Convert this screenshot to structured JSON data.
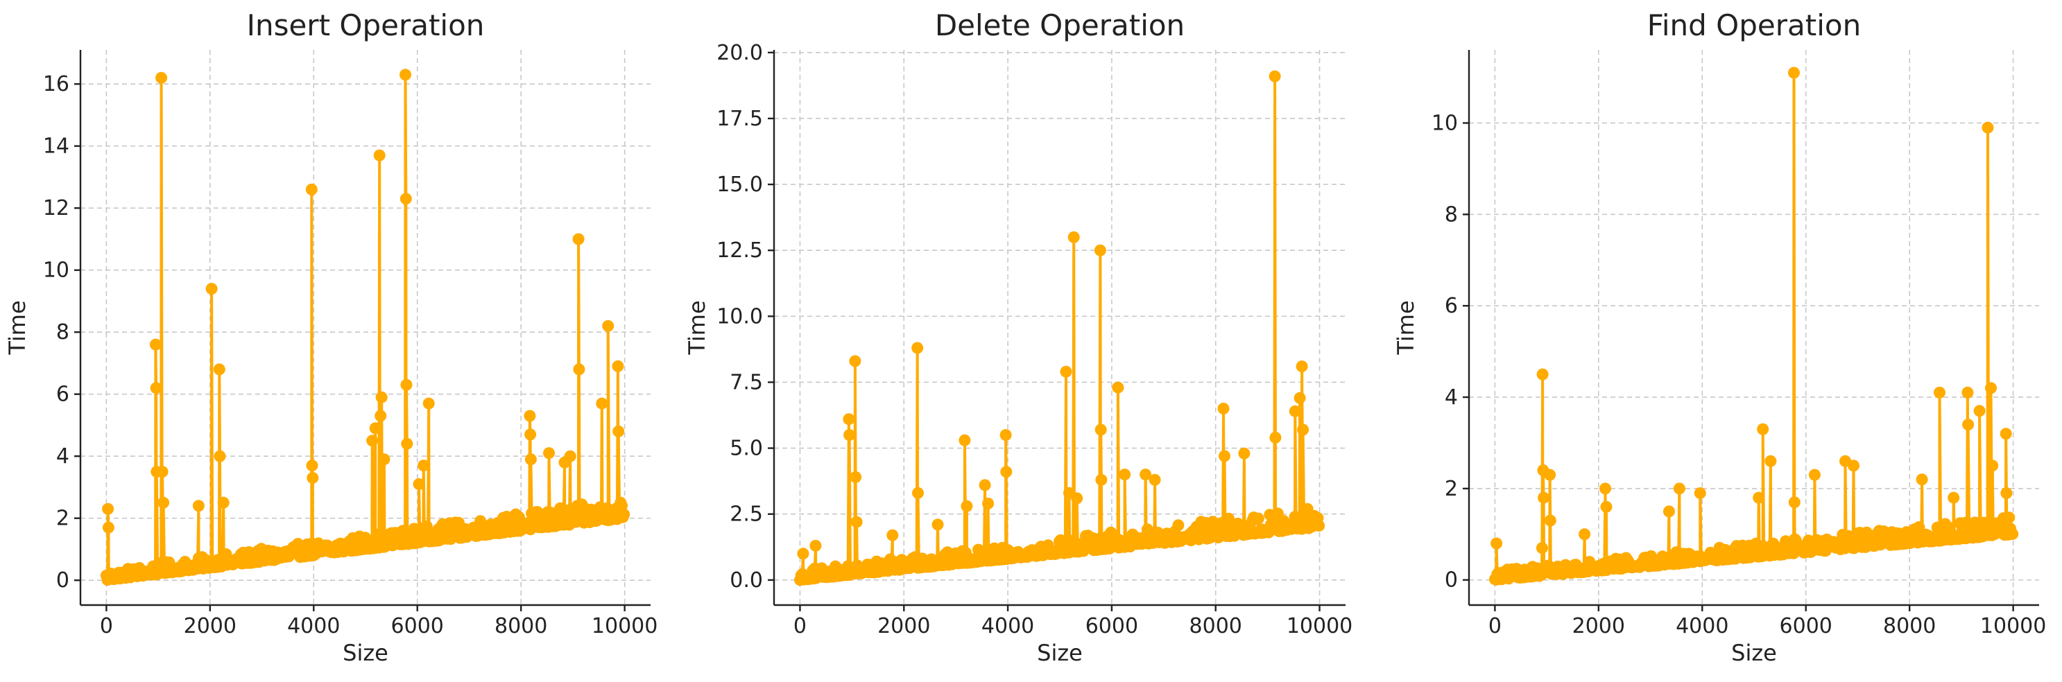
{
  "chart_data": [
    {
      "type": "line",
      "title": "Insert Operation",
      "xlabel": "Size",
      "ylabel": "Time",
      "xlim": [
        -500,
        10500
      ],
      "ylim": [
        -0.8,
        17.1
      ],
      "xticks": [
        0,
        2000,
        4000,
        6000,
        8000,
        10000
      ],
      "yticks": [
        0,
        2,
        4,
        6,
        8,
        10,
        12,
        14,
        16
      ],
      "grid": true,
      "color": "#ffab00",
      "baseline": {
        "x0": 0,
        "y0": 0.0,
        "x1": 10000,
        "y1": 2.0
      },
      "noise": 0.32,
      "spikes": [
        {
          "x": 30,
          "y": 2.3
        },
        {
          "x": 40,
          "y": 1.7
        },
        {
          "x": 950,
          "y": 7.6
        },
        {
          "x": 960,
          "y": 6.2
        },
        {
          "x": 970,
          "y": 3.5
        },
        {
          "x": 1060,
          "y": 16.2
        },
        {
          "x": 1080,
          "y": 3.5
        },
        {
          "x": 1100,
          "y": 2.5
        },
        {
          "x": 1780,
          "y": 2.4
        },
        {
          "x": 2030,
          "y": 9.4
        },
        {
          "x": 2180,
          "y": 6.8
        },
        {
          "x": 2190,
          "y": 4.0
        },
        {
          "x": 2260,
          "y": 2.5
        },
        {
          "x": 3960,
          "y": 12.6
        },
        {
          "x": 3970,
          "y": 3.7
        },
        {
          "x": 3980,
          "y": 3.3
        },
        {
          "x": 5130,
          "y": 4.5
        },
        {
          "x": 5190,
          "y": 4.9
        },
        {
          "x": 5270,
          "y": 13.7
        },
        {
          "x": 5290,
          "y": 5.3
        },
        {
          "x": 5310,
          "y": 5.9
        },
        {
          "x": 5360,
          "y": 3.9
        },
        {
          "x": 5770,
          "y": 16.3
        },
        {
          "x": 5780,
          "y": 12.3
        },
        {
          "x": 5790,
          "y": 6.3
        },
        {
          "x": 5800,
          "y": 4.4
        },
        {
          "x": 6030,
          "y": 3.1
        },
        {
          "x": 6120,
          "y": 3.7
        },
        {
          "x": 6220,
          "y": 5.7
        },
        {
          "x": 8170,
          "y": 5.3
        },
        {
          "x": 8180,
          "y": 4.7
        },
        {
          "x": 8190,
          "y": 3.9
        },
        {
          "x": 8540,
          "y": 4.1
        },
        {
          "x": 8840,
          "y": 3.8
        },
        {
          "x": 8950,
          "y": 4.0
        },
        {
          "x": 9110,
          "y": 11.0
        },
        {
          "x": 9120,
          "y": 6.8
        },
        {
          "x": 9560,
          "y": 5.7
        },
        {
          "x": 9680,
          "y": 8.2
        },
        {
          "x": 9870,
          "y": 6.9
        },
        {
          "x": 9880,
          "y": 4.8
        }
      ]
    },
    {
      "type": "line",
      "title": "Delete Operation",
      "xlabel": "Size",
      "ylabel": "Time",
      "xlim": [
        -500,
        10500
      ],
      "ylim": [
        -0.95,
        20.1
      ],
      "xticks": [
        0,
        2000,
        4000,
        6000,
        8000,
        10000
      ],
      "yticks": [
        0.0,
        2.5,
        5.0,
        7.5,
        10.0,
        12.5,
        15.0,
        17.5,
        20.0
      ],
      "ytick_labels": [
        "0.0",
        "2.5",
        "5.0",
        "7.5",
        "10.0",
        "12.5",
        "15.0",
        "17.5",
        "20.0"
      ],
      "grid": true,
      "color": "#ffab00",
      "baseline": {
        "x0": 0,
        "y0": 0.0,
        "x1": 10000,
        "y1": 2.0
      },
      "noise": 0.38,
      "spikes": [
        {
          "x": 60,
          "y": 1.0
        },
        {
          "x": 300,
          "y": 1.3
        },
        {
          "x": 940,
          "y": 6.1
        },
        {
          "x": 950,
          "y": 5.5
        },
        {
          "x": 1060,
          "y": 8.3
        },
        {
          "x": 1070,
          "y": 3.9
        },
        {
          "x": 1090,
          "y": 2.2
        },
        {
          "x": 1780,
          "y": 1.7
        },
        {
          "x": 2260,
          "y": 8.8
        },
        {
          "x": 2270,
          "y": 3.3
        },
        {
          "x": 2650,
          "y": 2.1
        },
        {
          "x": 3170,
          "y": 5.3
        },
        {
          "x": 3210,
          "y": 2.8
        },
        {
          "x": 3560,
          "y": 3.6
        },
        {
          "x": 3620,
          "y": 2.9
        },
        {
          "x": 3960,
          "y": 5.5
        },
        {
          "x": 3970,
          "y": 4.1
        },
        {
          "x": 5120,
          "y": 7.9
        },
        {
          "x": 5180,
          "y": 3.3
        },
        {
          "x": 5270,
          "y": 13.0
        },
        {
          "x": 5330,
          "y": 3.1
        },
        {
          "x": 5780,
          "y": 12.5
        },
        {
          "x": 5790,
          "y": 5.7
        },
        {
          "x": 5800,
          "y": 3.8
        },
        {
          "x": 6120,
          "y": 7.3
        },
        {
          "x": 6250,
          "y": 4.0
        },
        {
          "x": 6650,
          "y": 4.0
        },
        {
          "x": 6830,
          "y": 3.8
        },
        {
          "x": 8150,
          "y": 6.5
        },
        {
          "x": 8170,
          "y": 4.7
        },
        {
          "x": 8550,
          "y": 4.8
        },
        {
          "x": 9140,
          "y": 19.1
        },
        {
          "x": 9150,
          "y": 5.4
        },
        {
          "x": 9530,
          "y": 6.4
        },
        {
          "x": 9620,
          "y": 6.9
        },
        {
          "x": 9660,
          "y": 8.1
        },
        {
          "x": 9680,
          "y": 5.7
        }
      ]
    },
    {
      "type": "line",
      "title": "Find Operation",
      "xlabel": "Size",
      "ylabel": "Time",
      "xlim": [
        -500,
        10500
      ],
      "ylim": [
        -0.55,
        11.6
      ],
      "xticks": [
        0,
        2000,
        4000,
        6000,
        8000,
        10000
      ],
      "yticks": [
        0,
        2,
        4,
        6,
        8,
        10
      ],
      "grid": true,
      "color": "#ffab00",
      "baseline": {
        "x0": 0,
        "y0": 0.0,
        "x1": 10000,
        "y1": 1.0
      },
      "noise": 0.2,
      "spikes": [
        {
          "x": 30,
          "y": 0.8
        },
        {
          "x": 910,
          "y": 0.7
        },
        {
          "x": 920,
          "y": 4.5
        },
        {
          "x": 930,
          "y": 2.4
        },
        {
          "x": 940,
          "y": 1.8
        },
        {
          "x": 1060,
          "y": 2.3
        },
        {
          "x": 1070,
          "y": 1.3
        },
        {
          "x": 1730,
          "y": 1.0
        },
        {
          "x": 2130,
          "y": 2.0
        },
        {
          "x": 2150,
          "y": 1.6
        },
        {
          "x": 3360,
          "y": 1.5
        },
        {
          "x": 3560,
          "y": 2.0
        },
        {
          "x": 3960,
          "y": 1.9
        },
        {
          "x": 5090,
          "y": 1.8
        },
        {
          "x": 5170,
          "y": 3.3
        },
        {
          "x": 5320,
          "y": 2.6
        },
        {
          "x": 5770,
          "y": 11.1
        },
        {
          "x": 5780,
          "y": 1.7
        },
        {
          "x": 6170,
          "y": 2.3
        },
        {
          "x": 6760,
          "y": 2.6
        },
        {
          "x": 6920,
          "y": 2.5
        },
        {
          "x": 8240,
          "y": 2.2
        },
        {
          "x": 8580,
          "y": 4.1
        },
        {
          "x": 8850,
          "y": 1.8
        },
        {
          "x": 9120,
          "y": 4.1
        },
        {
          "x": 9130,
          "y": 3.4
        },
        {
          "x": 9350,
          "y": 3.7
        },
        {
          "x": 9510,
          "y": 9.9
        },
        {
          "x": 9570,
          "y": 4.2
        },
        {
          "x": 9600,
          "y": 2.5
        },
        {
          "x": 9860,
          "y": 3.2
        },
        {
          "x": 9870,
          "y": 1.9
        }
      ]
    }
  ]
}
